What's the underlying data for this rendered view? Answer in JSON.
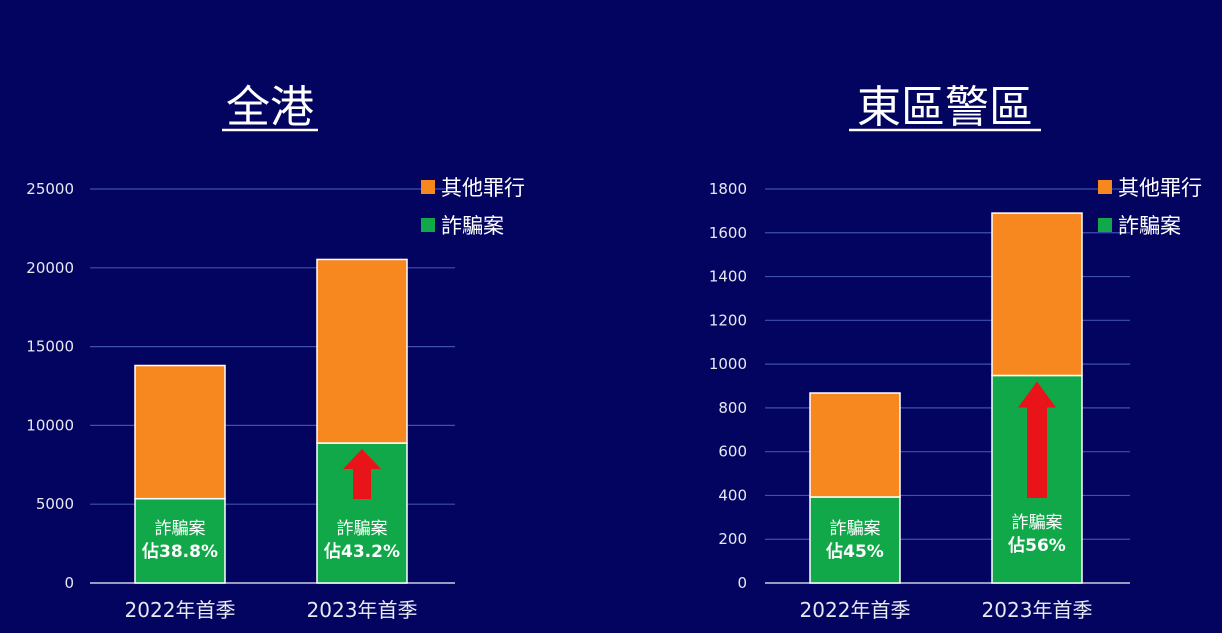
{
  "colors": {
    "background": "#03045f",
    "other_crime": "#f7881f",
    "fraud": "#11a84a",
    "arrow": "#e8141a",
    "grid": "#3f4fae",
    "text": "#ffffff",
    "axis_text": "#e6e8f2"
  },
  "chart_data": [
    {
      "type": "bar",
      "stacked": true,
      "title": "全港",
      "categories": [
        "2022年首季",
        "2023年首季"
      ],
      "series": [
        {
          "name": "詐騙案",
          "values": [
            5350,
            8880
          ],
          "color_key": "fraud"
        },
        {
          "name": "其他罪行",
          "values": [
            8450,
            11650
          ],
          "color_key": "other_crime"
        }
      ],
      "bar_labels": [
        {
          "line1": "詐騙案",
          "line2": "佔38.8%"
        },
        {
          "line1": "詐騙案",
          "line2": "佔43.2%"
        }
      ],
      "increase_arrow": {
        "category_index": 1,
        "icon": "up-arrow-icon"
      },
      "ylim": [
        0,
        25000
      ],
      "yticks": [
        0,
        5000,
        10000,
        15000,
        20000,
        25000
      ],
      "grid": true,
      "legend_position": "top-right",
      "legend_order": [
        "其他罪行",
        "詐騙案"
      ]
    },
    {
      "type": "bar",
      "stacked": true,
      "title": "東區警區",
      "categories": [
        "2022年首季",
        "2023年首季"
      ],
      "series": [
        {
          "name": "詐騙案",
          "values": [
            393,
            948
          ],
          "color_key": "fraud"
        },
        {
          "name": "其他罪行",
          "values": [
            475,
            742
          ],
          "color_key": "other_crime"
        }
      ],
      "bar_labels": [
        {
          "line1": "詐騙案",
          "line2": "佔45%"
        },
        {
          "line1": "詐騙案",
          "line2": "佔56%"
        }
      ],
      "increase_arrow": {
        "category_index": 1,
        "icon": "up-arrow-icon"
      },
      "ylim": [
        0,
        1800
      ],
      "yticks": [
        0,
        200,
        400,
        600,
        800,
        1000,
        1200,
        1400,
        1600,
        1800
      ],
      "grid": true,
      "legend_position": "top-right",
      "legend_order": [
        "其他罪行",
        "詐騙案"
      ]
    }
  ]
}
